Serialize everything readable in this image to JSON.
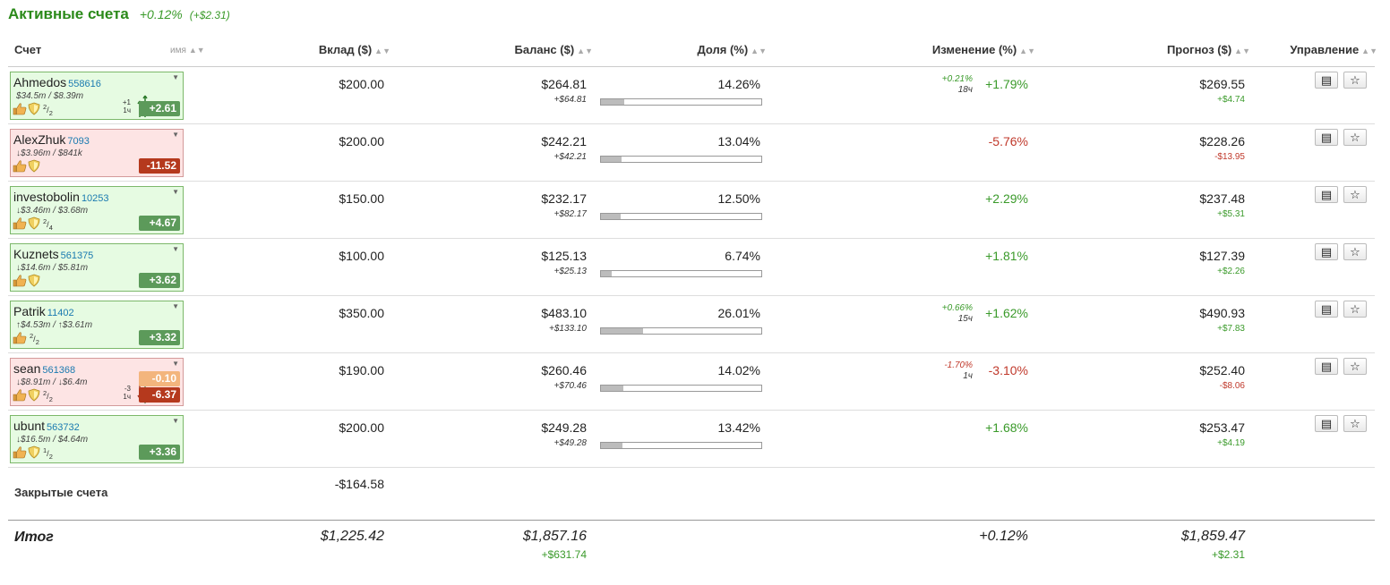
{
  "page": {
    "title": "Активные счета",
    "change_pct": "+0.12%",
    "change_abs": "(+$2.31)"
  },
  "headers": {
    "account": "Счет",
    "name_sort": "имя",
    "deposit": "Вклад ($)",
    "balance": "Баланс ($)",
    "share": "Доля (%)",
    "change": "Изменение (%)",
    "forecast": "Прогноз ($)",
    "manage": "Управление"
  },
  "icons": {
    "sort": "sort-arrows-icon",
    "dropdown": "dropdown-triangle-icon",
    "thumb": "thumbs-up-icon",
    "shield": "shield-icon",
    "list": "list-icon",
    "star": "star-icon"
  },
  "colors": {
    "positive": "#3a9a2a",
    "negative": "#c0392b",
    "card_positive_bg": "#e6fbe2",
    "card_negative_bg": "#fde4e4",
    "badge_positive": "#5c9a5a",
    "badge_negative": "#b5391d",
    "badge_orange": "#f3b57d"
  },
  "rows": [
    {
      "name": "Ahmedos",
      "id": "558616",
      "stats": "$34.5m / $8.39m",
      "frac_num": "2",
      "frac_den": "2",
      "badge": "+2.61",
      "badge2": "",
      "mini_top": "+1",
      "mini_bot": "1ч",
      "deposit": "$200.00",
      "balance": "$264.81",
      "balance_delta": "+$64.81",
      "share": "14.26%",
      "share_value": 14.26,
      "change_small": "+0.21%",
      "change_small_time": "18ч",
      "change": "+1.79%",
      "forecast": "$269.55",
      "forecast_delta": "+$4.74",
      "sign": "pos",
      "small_sign": "pos",
      "has_shield": true
    },
    {
      "name": "AlexZhuk",
      "id": "7093",
      "stats": "↓$3.96m / $841k",
      "frac_num": "",
      "frac_den": "",
      "badge": "-11.52",
      "badge2": "",
      "mini_top": "",
      "mini_bot": "",
      "deposit": "$200.00",
      "balance": "$242.21",
      "balance_delta": "+$42.21",
      "share": "13.04%",
      "share_value": 13.04,
      "change_small": "",
      "change_small_time": "",
      "change": "-5.76%",
      "forecast": "$228.26",
      "forecast_delta": "-$13.95",
      "sign": "neg",
      "small_sign": "",
      "has_shield": true
    },
    {
      "name": "investobolin",
      "id": "10253",
      "stats": "↓$3.46m / $3.68m",
      "frac_num": "2",
      "frac_den": "4",
      "badge": "+4.67",
      "badge2": "",
      "mini_top": "",
      "mini_bot": "",
      "deposit": "$150.00",
      "balance": "$232.17",
      "balance_delta": "+$82.17",
      "share": "12.50%",
      "share_value": 12.5,
      "change_small": "",
      "change_small_time": "",
      "change": "+2.29%",
      "forecast": "$237.48",
      "forecast_delta": "+$5.31",
      "sign": "pos",
      "small_sign": "",
      "has_shield": true
    },
    {
      "name": "Kuznets",
      "id": "561375",
      "stats": "↓$14.6m / $5.81m",
      "frac_num": "",
      "frac_den": "",
      "badge": "+3.62",
      "badge2": "",
      "mini_top": "",
      "mini_bot": "",
      "deposit": "$100.00",
      "balance": "$125.13",
      "balance_delta": "+$25.13",
      "share": "6.74%",
      "share_value": 6.74,
      "change_small": "",
      "change_small_time": "",
      "change": "+1.81%",
      "forecast": "$127.39",
      "forecast_delta": "+$2.26",
      "sign": "pos",
      "small_sign": "",
      "has_shield": true
    },
    {
      "name": "Patrik",
      "id": "11402",
      "stats": "↑$4.53m / ↑$3.61m",
      "frac_num": "2",
      "frac_den": "2",
      "badge": "+3.32",
      "badge2": "",
      "mini_top": "",
      "mini_bot": "",
      "deposit": "$350.00",
      "balance": "$483.10",
      "balance_delta": "+$133.10",
      "share": "26.01%",
      "share_value": 26.01,
      "change_small": "+0.66%",
      "change_small_time": "15ч",
      "change": "+1.62%",
      "forecast": "$490.93",
      "forecast_delta": "+$7.83",
      "sign": "pos",
      "small_sign": "pos",
      "has_shield": false
    },
    {
      "name": "sean",
      "id": "561368",
      "stats": "↓$8.91m / ↓$6.4m",
      "frac_num": "2",
      "frac_den": "2",
      "badge": "-6.37",
      "badge2": "-0.10",
      "mini_top": "-3",
      "mini_bot": "1ч",
      "deposit": "$190.00",
      "balance": "$260.46",
      "balance_delta": "+$70.46",
      "share": "14.02%",
      "share_value": 14.02,
      "change_small": "-1.70%",
      "change_small_time": "1ч",
      "change": "-3.10%",
      "forecast": "$252.40",
      "forecast_delta": "-$8.06",
      "sign": "neg",
      "small_sign": "neg",
      "has_shield": true
    },
    {
      "name": "ubunt",
      "id": "563732",
      "stats": "↓$16.5m / $4.64m",
      "frac_num": "1",
      "frac_den": "2",
      "badge": "+3.36",
      "badge2": "",
      "mini_top": "",
      "mini_bot": "",
      "deposit": "$200.00",
      "balance": "$249.28",
      "balance_delta": "+$49.28",
      "share": "13.42%",
      "share_value": 13.42,
      "change_small": "",
      "change_small_time": "",
      "change": "+1.68%",
      "forecast": "$253.47",
      "forecast_delta": "+$4.19",
      "sign": "pos",
      "small_sign": "",
      "has_shield": true
    }
  ],
  "closed": {
    "label": "Закрытые счета",
    "deposit": "-$164.58"
  },
  "total": {
    "label": "Итог",
    "deposit": "$1,225.42",
    "balance": "$1,857.16",
    "balance_delta": "+$631.74",
    "change": "+0.12%",
    "forecast": "$1,859.47",
    "forecast_delta": "+$2.31"
  }
}
